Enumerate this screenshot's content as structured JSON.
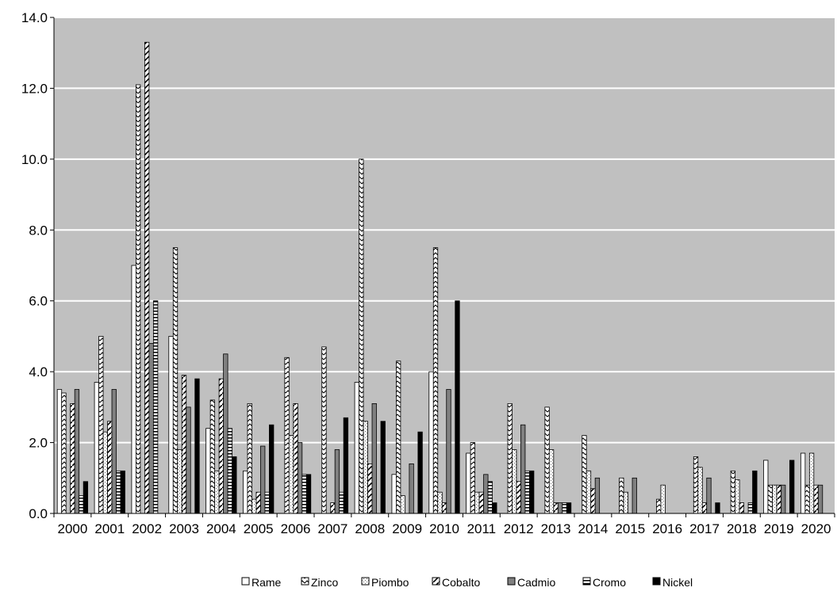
{
  "chart_data": {
    "type": "bar",
    "title": "",
    "xlabel": "",
    "ylabel": "",
    "ylim": [
      0,
      14
    ],
    "yticks": [
      "0.0",
      "2.0",
      "4.0",
      "6.0",
      "8.0",
      "10.0",
      "12.0",
      "14.0"
    ],
    "grid": true,
    "legend_position": "bottom",
    "plot_background": "#c0c0c0",
    "categories": [
      "2000",
      "2001",
      "2002",
      "2003",
      "2004",
      "2005",
      "2006",
      "2007",
      "2008",
      "2009",
      "2010",
      "2011",
      "2012",
      "2013",
      "2014",
      "2015",
      "2016",
      "2017",
      "2018",
      "2019",
      "2020"
    ],
    "series": [
      {
        "name": "Rame",
        "pattern": "white",
        "values": [
          3.5,
          3.7,
          7.0,
          5.0,
          2.4,
          1.2,
          0,
          0,
          3.7,
          1.1,
          4.0,
          1.7,
          0,
          0,
          0,
          0,
          0,
          0,
          0,
          1.5,
          1.7
        ]
      },
      {
        "name": "Zinco",
        "pattern": "zigzag",
        "values": [
          3.4,
          5.0,
          12.1,
          7.5,
          3.2,
          3.1,
          4.4,
          4.7,
          10.0,
          4.3,
          7.5,
          2.0,
          3.1,
          3.0,
          2.2,
          1.0,
          0.4,
          1.6,
          1.2,
          0.8,
          0.8
        ]
      },
      {
        "name": "Piombo",
        "pattern": "light-dots",
        "values": [
          0,
          2.3,
          0,
          1.8,
          1.2,
          0.4,
          2.2,
          0,
          2.6,
          0.5,
          0.6,
          0.6,
          1.8,
          1.8,
          1.2,
          0.6,
          0.8,
          1.3,
          0.95,
          0.8,
          1.7
        ]
      },
      {
        "name": "Cobalto",
        "pattern": "diagonal",
        "values": [
          3.1,
          2.6,
          13.3,
          3.9,
          3.8,
          0.6,
          3.1,
          0.3,
          1.4,
          0,
          0.3,
          0.6,
          0.9,
          0.3,
          0.7,
          0,
          0,
          0.3,
          0.3,
          0.8,
          0.8
        ]
      },
      {
        "name": "Cadmio",
        "pattern": "gray",
        "values": [
          3.5,
          3.5,
          4.8,
          3.0,
          4.5,
          1.9,
          2.0,
          1.8,
          3.1,
          1.4,
          3.5,
          1.1,
          2.5,
          0.3,
          1.0,
          1.0,
          0,
          1.0,
          0,
          0.8,
          0.8
        ]
      },
      {
        "name": "Cromo",
        "pattern": "h-lines",
        "values": [
          0.5,
          1.2,
          6.0,
          0,
          2.4,
          0.6,
          1.1,
          0.6,
          0,
          0,
          0,
          0.9,
          1.2,
          0.3,
          0,
          0,
          0,
          0,
          0.3,
          0,
          0
        ]
      },
      {
        "name": "Nickel",
        "pattern": "black",
        "values": [
          0.9,
          1.2,
          0,
          3.8,
          1.6,
          2.5,
          1.1,
          2.7,
          2.6,
          2.3,
          6.0,
          0.3,
          1.2,
          0.3,
          0,
          0,
          0,
          0.3,
          1.2,
          1.5,
          0
        ]
      }
    ]
  }
}
